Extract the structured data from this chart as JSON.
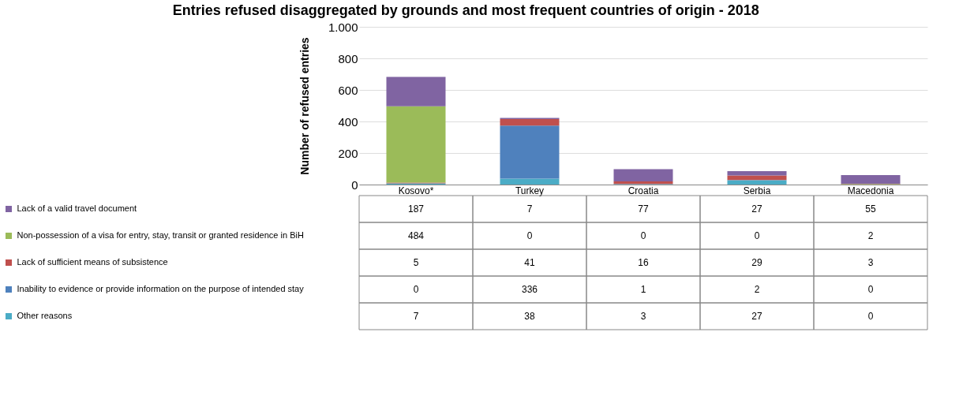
{
  "chart_data": {
    "type": "bar",
    "title": "Entries refused disaggregated by grounds and most frequent countries of origin - 2018",
    "ylabel": "Number of refused entries",
    "categories": [
      "Kosovo*",
      "Turkey",
      "Croatia",
      "Serbia",
      "Macedonia"
    ],
    "stacked": true,
    "data_labels": true,
    "legend": "bottom",
    "grid": "y",
    "ylim": [
      0,
      1000
    ],
    "yticks": [
      0,
      200,
      400,
      600,
      800,
      {
        "value": 1000,
        "label": "1.000"
      }
    ],
    "series": [
      {
        "name": "Other reasons",
        "color": "#4bacc6",
        "values": [
          7,
          38,
          3,
          27,
          0
        ]
      },
      {
        "name": "Inability to evidence or provide information on the purpose of intended stay",
        "color": "#4f81bd",
        "values": [
          0,
          336,
          1,
          2,
          0
        ]
      },
      {
        "name": "Lack of sufficient means of subsistence",
        "color": "#c0504d",
        "values": [
          5,
          41,
          16,
          29,
          3
        ]
      },
      {
        "name": "Non-possession of a visa for entry, stay, transit or granted residence in BiH",
        "color": "#9bbb59",
        "values": [
          484,
          0,
          0,
          0,
          2
        ]
      },
      {
        "name": "Lack of a valid travel document",
        "color": "#8064a2",
        "values": [
          187,
          7,
          77,
          27,
          55
        ]
      }
    ]
  }
}
